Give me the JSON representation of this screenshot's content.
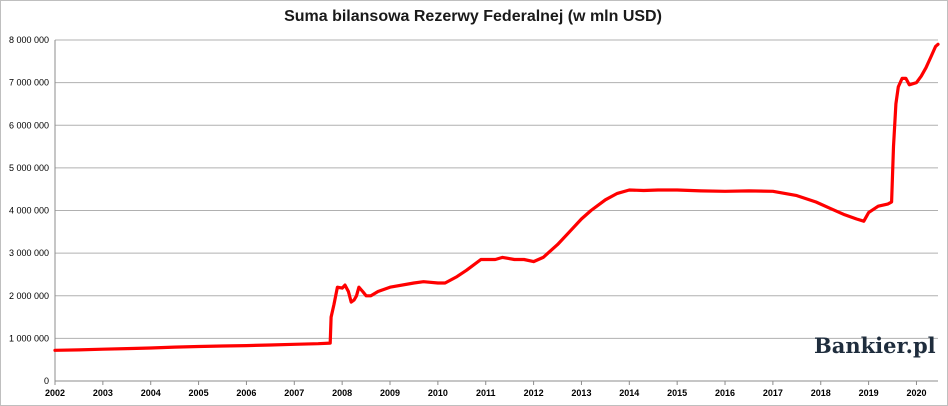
{
  "chart_data": {
    "type": "line",
    "title": "Suma bilansowa Rezerwy Federalnej (w mln USD)",
    "xlabel": "",
    "ylabel": "",
    "xlim": [
      2002,
      2020.45
    ],
    "ylim": [
      0,
      8000000
    ],
    "grid": true,
    "y_ticks": [
      {
        "value": 0,
        "label": "0"
      },
      {
        "value": 1000000,
        "label": "1 000 000"
      },
      {
        "value": 2000000,
        "label": "2 000 000"
      },
      {
        "value": 3000000,
        "label": "3 000 000"
      },
      {
        "value": 4000000,
        "label": "4 000 000"
      },
      {
        "value": 5000000,
        "label": "5 000 000"
      },
      {
        "value": 6000000,
        "label": "6 000 000"
      },
      {
        "value": 7000000,
        "label": "7 000 000"
      },
      {
        "value": 8000000,
        "label": "8 000 000"
      }
    ],
    "x_ticks": [
      "2002",
      "2003",
      "2004",
      "2005",
      "2006",
      "2007",
      "2008",
      "2009",
      "2010",
      "2011",
      "2012",
      "2013",
      "2014",
      "2015",
      "2016",
      "2017",
      "2018",
      "2019",
      "2020"
    ],
    "series": [
      {
        "color": "#ff0000",
        "points": [
          [
            2002.0,
            720000
          ],
          [
            2002.5,
            730000
          ],
          [
            2003.0,
            745000
          ],
          [
            2003.5,
            760000
          ],
          [
            2004.0,
            775000
          ],
          [
            2004.5,
            795000
          ],
          [
            2005.0,
            810000
          ],
          [
            2005.5,
            820000
          ],
          [
            2006.0,
            830000
          ],
          [
            2006.5,
            845000
          ],
          [
            2007.0,
            860000
          ],
          [
            2007.5,
            875000
          ],
          [
            2007.75,
            890000
          ],
          [
            2007.77,
            1500000
          ],
          [
            2007.83,
            1800000
          ],
          [
            2007.9,
            2200000
          ],
          [
            2008.0,
            2180000
          ],
          [
            2008.06,
            2250000
          ],
          [
            2008.13,
            2100000
          ],
          [
            2008.19,
            1850000
          ],
          [
            2008.25,
            1900000
          ],
          [
            2008.3,
            2000000
          ],
          [
            2008.35,
            2200000
          ],
          [
            2008.43,
            2100000
          ],
          [
            2008.5,
            2000000
          ],
          [
            2008.6,
            2000000
          ],
          [
            2008.75,
            2100000
          ],
          [
            2009.0,
            2200000
          ],
          [
            2009.5,
            2300000
          ],
          [
            2009.7,
            2330000
          ],
          [
            2010.0,
            2300000
          ],
          [
            2010.15,
            2300000
          ],
          [
            2010.4,
            2450000
          ],
          [
            2010.6,
            2600000
          ],
          [
            2010.9,
            2850000
          ],
          [
            2011.0,
            2850000
          ],
          [
            2011.2,
            2850000
          ],
          [
            2011.35,
            2900000
          ],
          [
            2011.6,
            2850000
          ],
          [
            2011.8,
            2850000
          ],
          [
            2012.0,
            2800000
          ],
          [
            2012.2,
            2900000
          ],
          [
            2012.5,
            3200000
          ],
          [
            2012.75,
            3500000
          ],
          [
            2013.0,
            3800000
          ],
          [
            2013.2,
            4000000
          ],
          [
            2013.5,
            4250000
          ],
          [
            2013.75,
            4400000
          ],
          [
            2014.0,
            4480000
          ],
          [
            2014.3,
            4470000
          ],
          [
            2014.6,
            4480000
          ],
          [
            2015.0,
            4480000
          ],
          [
            2015.5,
            4460000
          ],
          [
            2016.0,
            4450000
          ],
          [
            2016.5,
            4460000
          ],
          [
            2017.0,
            4450000
          ],
          [
            2017.5,
            4350000
          ],
          [
            2017.9,
            4200000
          ],
          [
            2018.2,
            4050000
          ],
          [
            2018.5,
            3900000
          ],
          [
            2018.75,
            3800000
          ],
          [
            2018.9,
            3750000
          ],
          [
            2019.0,
            3950000
          ],
          [
            2019.2,
            4100000
          ],
          [
            2019.4,
            4150000
          ],
          [
            2019.48,
            4200000
          ],
          [
            2019.52,
            5500000
          ],
          [
            2019.57,
            6500000
          ],
          [
            2019.62,
            6900000
          ],
          [
            2019.7,
            7100000
          ],
          [
            2019.78,
            7100000
          ],
          [
            2019.85,
            6950000
          ],
          [
            2020.0,
            7000000
          ],
          [
            2020.1,
            7150000
          ],
          [
            2020.2,
            7350000
          ],
          [
            2020.3,
            7600000
          ],
          [
            2020.4,
            7850000
          ],
          [
            2020.45,
            7900000
          ]
        ]
      }
    ]
  },
  "brand": {
    "logo_text": "Bankier.pl"
  }
}
